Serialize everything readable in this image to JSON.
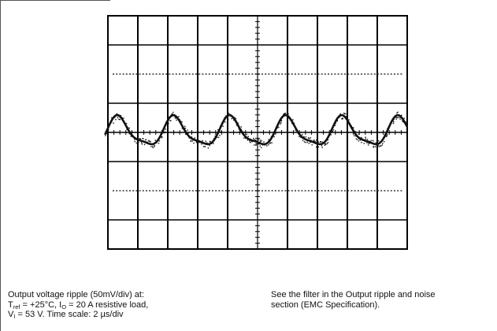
{
  "chart_data": {
    "type": "line",
    "title": "",
    "xlabel": "",
    "ylabel": "",
    "grid": true,
    "divisions_x": 10,
    "divisions_y": 8,
    "xlim": [
      0,
      20
    ],
    "ylim": [
      -200,
      200
    ],
    "x_unit": "µs",
    "y_unit": "mV",
    "time_scale": "2 µs/div",
    "vertical_scale": "50mV/div",
    "series": [
      {
        "waveform": "ripple",
        "period_us": 3.75,
        "amplitude_mv_pp": 60,
        "offset_mv": 0,
        "peaks_x": [
          0.7,
          4.4,
          8.2,
          11.9,
          15.7,
          19.4
        ],
        "troughs_x": [
          2.55,
          6.3,
          10.05,
          13.8,
          17.55
        ]
      }
    ],
    "colors": {
      "trace": "#111111",
      "grid": "#000000",
      "graticule_dots": "#333333"
    }
  },
  "caption": {
    "left": {
      "line1": "Output voltage ripple (50mV/div) at:",
      "line2_a": "T",
      "line2_sub1": "ref",
      "line2_b": " = +25°C, I",
      "line2_sub2": "O",
      "line2_c": " = 20 A resistive load,",
      "line3_a": "V",
      "line3_sub": "I",
      "line3_b": " = 53 V. Time scale: 2 µs/div"
    },
    "right": {
      "line1": "See the filter in the Output ripple and noise",
      "line2": "section (EMC Specification)."
    }
  }
}
